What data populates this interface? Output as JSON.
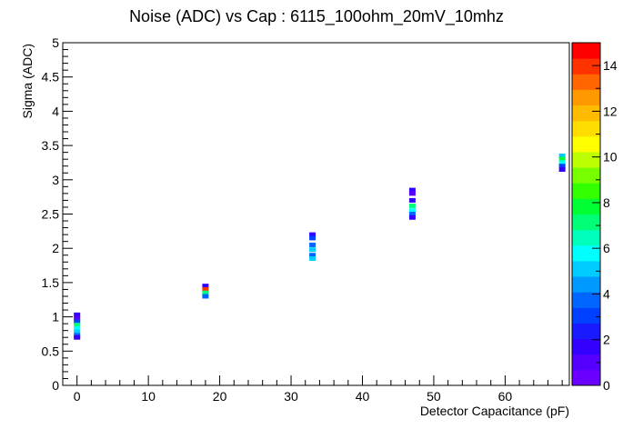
{
  "chart_data": {
    "type": "heatmap",
    "title": "Noise (ADC) vs Cap : 6115_100ohm_20mV_10mhz",
    "xlabel": "Detector Capacitance (pF)",
    "ylabel": "Sigma (ADC)",
    "xlim": [
      -2,
      69
    ],
    "ylim": [
      0,
      5
    ],
    "x_ticks": [
      "0",
      "10",
      "20",
      "30",
      "40",
      "50",
      "60"
    ],
    "y_ticks": [
      "0",
      "0.5",
      "1",
      "1.5",
      "2",
      "2.5",
      "3",
      "3.5",
      "4",
      "4.5",
      "5"
    ],
    "z_range": [
      0,
      15
    ],
    "z_ticks": [
      "0",
      "2",
      "4",
      "6",
      "8",
      "10",
      "12",
      "14"
    ],
    "palette": [
      "#6a00ff",
      "#5500ff",
      "#3300ff",
      "#1a1aff",
      "#0040ff",
      "#0066ff",
      "#0099ff",
      "#00ccff",
      "#00ffff",
      "#00ffbb",
      "#00ff77",
      "#00ff33",
      "#33ff00",
      "#77ff00",
      "#bbff00",
      "#ffff00",
      "#ffdd00",
      "#ffbb00",
      "#ff9900",
      "#ff6600",
      "#ff3300",
      "#ff0000"
    ],
    "grid": false,
    "cells": [
      {
        "x": 0,
        "y": 1.03,
        "z": 2
      },
      {
        "x": 0,
        "y": 0.98,
        "z": 1
      },
      {
        "x": 0,
        "y": 0.93,
        "z": 3
      },
      {
        "x": 0,
        "y": 0.88,
        "z": 7
      },
      {
        "x": 0,
        "y": 0.83,
        "z": 6
      },
      {
        "x": 0,
        "y": 0.78,
        "z": 5
      },
      {
        "x": 0,
        "y": 0.73,
        "z": 4
      },
      {
        "x": 0,
        "y": 0.7,
        "z": 2
      },
      {
        "x": 18,
        "y": 1.45,
        "z": 2
      },
      {
        "x": 18,
        "y": 1.4,
        "z": 14
      },
      {
        "x": 18,
        "y": 1.35,
        "z": 7
      },
      {
        "x": 18,
        "y": 1.3,
        "z": 4
      },
      {
        "x": 33,
        "y": 2.2,
        "z": 2
      },
      {
        "x": 33,
        "y": 2.15,
        "z": 3
      },
      {
        "x": 33,
        "y": 2.05,
        "z": 4
      },
      {
        "x": 33,
        "y": 1.98,
        "z": 5
      },
      {
        "x": 33,
        "y": 1.9,
        "z": 4
      },
      {
        "x": 33,
        "y": 1.85,
        "z": 5
      },
      {
        "x": 47,
        "y": 2.85,
        "z": 2
      },
      {
        "x": 47,
        "y": 2.8,
        "z": 1
      },
      {
        "x": 47,
        "y": 2.7,
        "z": 2
      },
      {
        "x": 47,
        "y": 2.62,
        "z": 7
      },
      {
        "x": 47,
        "y": 2.55,
        "z": 6
      },
      {
        "x": 47,
        "y": 2.5,
        "z": 4
      },
      {
        "x": 47,
        "y": 2.45,
        "z": 2
      },
      {
        "x": 68,
        "y": 3.35,
        "z": 5
      },
      {
        "x": 68,
        "y": 3.3,
        "z": 8
      },
      {
        "x": 68,
        "y": 3.25,
        "z": 6
      },
      {
        "x": 68,
        "y": 3.2,
        "z": 3
      },
      {
        "x": 68,
        "y": 3.15,
        "z": 2
      }
    ]
  }
}
